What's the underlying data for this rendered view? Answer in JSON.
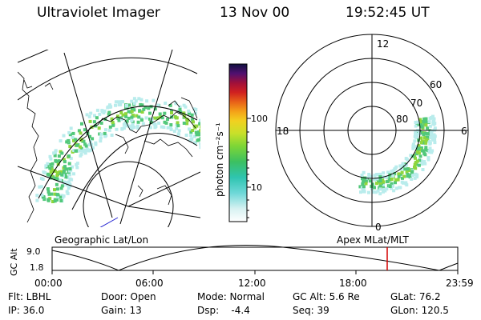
{
  "header": {
    "instrument": "Ultraviolet Imager",
    "date": "13 Nov 00",
    "time": "19:52:45 UT"
  },
  "colorbar": {
    "unit_label": "photon cm⁻²s⁻¹",
    "ticks": [
      "100",
      "10"
    ]
  },
  "polar_plot": {
    "mlt_labels": {
      "top": "12",
      "left": "18",
      "right": "6",
      "bottom": "0"
    },
    "lat_labels": [
      "60",
      "70",
      "80"
    ]
  },
  "map_labels": {
    "left": "Geographic Lat/Lon",
    "right": "Apex MLat/MLT"
  },
  "orbit_plot": {
    "ylabel": "GC Alt",
    "yticks": [
      "9.0",
      "1.8"
    ],
    "xticks": [
      "00:00",
      "06:00",
      "12:00",
      "18:00",
      "23:59"
    ]
  },
  "info": {
    "filter": "Flt: LBHL",
    "ip": "IP: 36.0",
    "door": "Door: Open",
    "gain": "Gain: 13",
    "mode": "Mode: Normal",
    "dsp": "Dsp:    -4.4",
    "gc_alt": "GC Alt: 5.6 Re",
    "seq": "Seq: 39",
    "glat": "GLat: 76.2",
    "glon": "GLon: 120.5"
  },
  "colors": {
    "marker": "#d40000",
    "aurora_low": "#b9ecec",
    "aurora_mid": "#52c87a",
    "aurora_high": "#8fd63c"
  }
}
